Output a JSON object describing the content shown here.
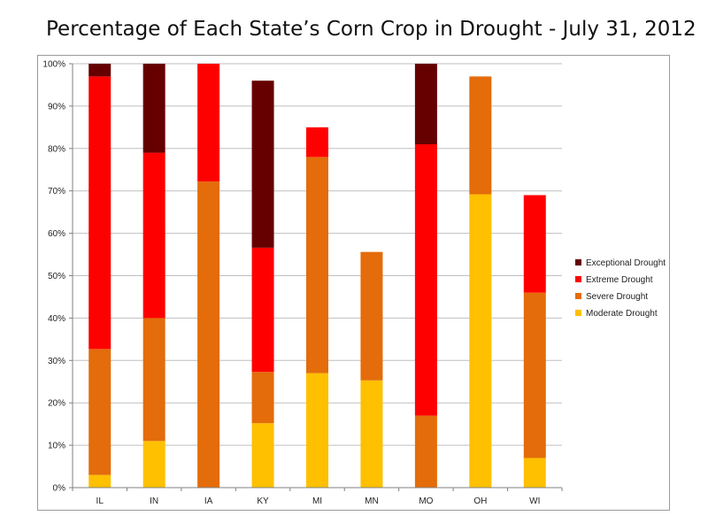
{
  "chart_data": {
    "type": "bar",
    "stacked": true,
    "title": "Percentage of Each State’s Corn Crop in Drought - July 31, 2012",
    "xlabel": "",
    "ylabel": "",
    "categories": [
      "IL",
      "IN",
      "IA",
      "KY",
      "MI",
      "MN",
      "MO",
      "OH",
      "WI"
    ],
    "ylim": [
      0,
      100
    ],
    "yticks": [
      0,
      10,
      20,
      30,
      40,
      50,
      60,
      70,
      80,
      90,
      100
    ],
    "ytick_labels": [
      "0%",
      "10%",
      "20%",
      "30%",
      "40%",
      "50%",
      "60%",
      "70%",
      "80%",
      "90%",
      "100%"
    ],
    "grid": true,
    "legend_position": "right",
    "series": [
      {
        "name": "Moderate Drought",
        "color": "#FFC000",
        "values": [
          3,
          11,
          0,
          15.2,
          27,
          25.3,
          0,
          69.2,
          7
        ]
      },
      {
        "name": "Severe Drought",
        "color": "#E46C0A",
        "values": [
          29.7,
          29,
          72.2,
          12.1,
          51,
          30.3,
          17,
          27.8,
          39
        ]
      },
      {
        "name": "Extreme Drought",
        "color": "#FF0000",
        "values": [
          64.3,
          39,
          27.8,
          29.3,
          7,
          0,
          64,
          0,
          23
        ]
      },
      {
        "name": "Exceptional Drought",
        "color": "#660000",
        "values": [
          3,
          21,
          0,
          39.4,
          0,
          0,
          19,
          0,
          0
        ]
      }
    ]
  }
}
